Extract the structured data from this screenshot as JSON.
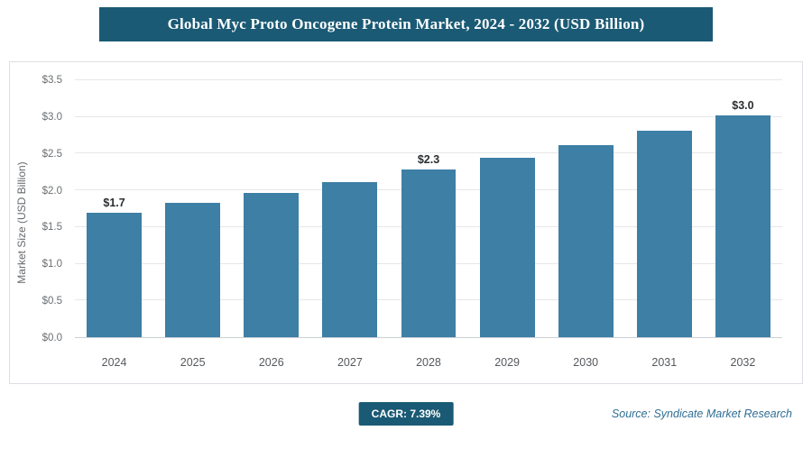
{
  "header": {
    "title": "Global Myc Proto Oncogene Protein Market, 2024 - 2032 (USD Billion)"
  },
  "chart_data": {
    "type": "bar",
    "title": "Global Myc Proto Oncogene Protein Market, 2024 - 2032 (USD Billion)",
    "xlabel": "",
    "ylabel": "Market Size (USD Billion)",
    "ylim": [
      0,
      3.5
    ],
    "ytick_step": 0.5,
    "ytick_labels": [
      "$0.0",
      "$0.5",
      "$1.0",
      "$1.5",
      "$2.0",
      "$2.5",
      "$3.0",
      "$3.5"
    ],
    "categories": [
      "2024",
      "2025",
      "2026",
      "2027",
      "2028",
      "2029",
      "2030",
      "2031",
      "2032"
    ],
    "values": [
      1.7,
      1.83,
      1.97,
      2.11,
      2.28,
      2.45,
      2.62,
      2.81,
      3.02
    ],
    "data_labels": [
      "$1.7",
      "",
      "",
      "",
      "$2.3",
      "",
      "",
      "",
      "$3.0"
    ],
    "grid": true,
    "legend": false,
    "bar_color": "#3d7fa5"
  },
  "footer": {
    "cagr_label": "CAGR: 7.39%",
    "source": "Source: Syndicate Market Research"
  },
  "colors": {
    "title_bar": "#1a5a74",
    "bar": "#3d7fa5",
    "badge": "#1a5a74",
    "source_text": "#2f6e94"
  }
}
